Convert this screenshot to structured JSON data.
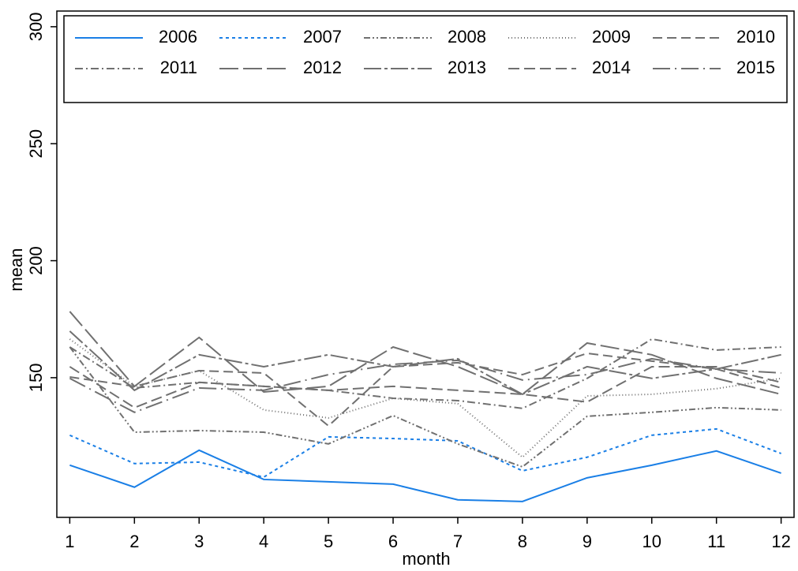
{
  "chart_data": {
    "type": "line",
    "x_label": "month",
    "y_label": "mean",
    "x": [
      1,
      2,
      3,
      4,
      5,
      6,
      7,
      8,
      9,
      10,
      11,
      12
    ],
    "xlim": [
      0.8,
      12.2
    ],
    "xticks": [
      1,
      2,
      3,
      4,
      5,
      6,
      7,
      8,
      9,
      10,
      11,
      12
    ],
    "ylim": [
      90.3,
      306.7
    ],
    "yticks": [
      150,
      200,
      250,
      300
    ],
    "legend": "top",
    "series": [
      {
        "name": "2006",
        "color": "#1a7fe6",
        "dash": "none",
        "values": [
          112.6,
          103.2,
          119.0,
          106.5,
          105.5,
          104.5,
          97.8,
          97.1,
          107.2,
          112.6,
          118.7,
          109.2
        ]
      },
      {
        "name": "2007",
        "color": "#1a7fe6",
        "dash": "4 4",
        "values": [
          125.4,
          113.3,
          113.9,
          107.5,
          124.7,
          124.0,
          123.0,
          110.2,
          116.0,
          125.4,
          128.1,
          117.6
        ]
      },
      {
        "name": "2008",
        "color": "#707070",
        "dash": "8 3 2 3 2 3",
        "values": [
          163.1,
          126.7,
          127.4,
          126.7,
          121.7,
          133.8,
          121.7,
          111.9,
          133.5,
          135.2,
          137.2,
          136.2
        ]
      },
      {
        "name": "2009",
        "color": "#707070",
        "dash": "1 3",
        "values": [
          166.5,
          146.3,
          153.0,
          136.2,
          132.8,
          141.2,
          138.9,
          116.0,
          142.2,
          142.9,
          145.3,
          149.7
        ]
      },
      {
        "name": "2010",
        "color": "#707070",
        "dash": "12 6",
        "values": [
          150.3,
          146.3,
          153.0,
          152.0,
          129.4,
          154.7,
          156.4,
          151.3,
          160.4,
          157.1,
          153.7,
          145.6
        ]
      },
      {
        "name": "2011",
        "color": "#707070",
        "dash": "10 4 2 4",
        "values": [
          163.1,
          145.6,
          148.0,
          146.3,
          144.6,
          141.2,
          140.2,
          136.9,
          149.7,
          166.5,
          161.8,
          163.1
        ]
      },
      {
        "name": "2012",
        "color": "#707070",
        "dash": "24 6",
        "values": [
          178.3,
          146.3,
          167.2,
          143.9,
          146.3,
          163.1,
          154.7,
          142.9,
          164.8,
          159.8,
          149.7,
          142.9
        ]
      },
      {
        "name": "2013",
        "color": "#707070",
        "dash": "22 4 4 4",
        "values": [
          169.9,
          144.6,
          159.8,
          154.7,
          159.8,
          154.7,
          158.1,
          142.9,
          154.7,
          149.7,
          153.7,
          159.8
        ]
      },
      {
        "name": "2014",
        "color": "#707070",
        "dash": "14 6",
        "values": [
          154.7,
          137.2,
          148.0,
          146.3,
          144.6,
          146.3,
          144.6,
          142.9,
          139.6,
          154.7,
          154.7,
          148.0
        ]
      },
      {
        "name": "2015",
        "color": "#707070",
        "dash": "22 6 2 6",
        "values": [
          149.7,
          135.2,
          145.6,
          144.6,
          151.3,
          155.7,
          157.4,
          149.0,
          151.3,
          158.1,
          153.7,
          152.0
        ]
      }
    ]
  }
}
